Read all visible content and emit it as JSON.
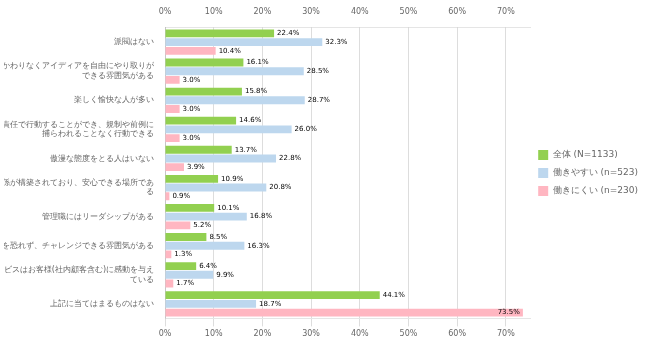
{
  "chart_data": {
    "type": "bar",
    "orientation": "horizontal",
    "categories": [
      "派閥はない",
      "地位や部署にかかわりなくアイディアを自由にやり取りが\nできる雰囲気がある",
      "楽しく愉快な人が多い",
      "独自の裁量と責任で行動することができ、規制や前例に\n捕らわれることなく行動できる",
      "傲漫な態度をとる人はいない",
      "相互に信頼関係が構築されており、安心できる場所であ\nる",
      "管理職にはリーダシップがある",
      "変化を恐れず、チャレンジできる雰囲気がある",
      "製品やサービスはお客様(社内顧客含む)に感動を与え\nている",
      "上記に当てはまるものはない"
    ],
    "series": [
      {
        "name": "全体 (N=1133)",
        "color": "#92d050",
        "values": [
          22.4,
          16.1,
          15.8,
          14.6,
          13.7,
          10.9,
          10.1,
          8.5,
          6.4,
          44.1
        ],
        "value_labels": [
          "22.4%",
          "16.1%",
          "15.8%",
          "14.6%",
          "13.7%",
          "10.9%",
          "10.1%",
          "8.5%",
          "6.4%",
          "44.1%"
        ]
      },
      {
        "name": "働きやすい (n=523)",
        "color": "#bdd7ee",
        "values": [
          32.3,
          28.5,
          28.7,
          26.0,
          22.8,
          20.8,
          16.8,
          16.3,
          9.9,
          18.7
        ],
        "value_labels": [
          "32.3%",
          "28.5%",
          "28.7%",
          "26.0%",
          "22.8%",
          "20.8%",
          "16.8%",
          "16.3%",
          "9.9%",
          "18.7%"
        ]
      },
      {
        "name": "働きにくい (n=230)",
        "color": "#ffb6c1",
        "values": [
          10.4,
          3.0,
          3.0,
          3.0,
          3.9,
          0.9,
          5.2,
          1.3,
          1.7,
          73.5
        ],
        "value_labels": [
          "10.4%",
          "3.0%",
          "3.0%",
          "3.0%",
          "3.9%",
          "0.9%",
          "5.2%",
          "1.3%",
          "1.7%",
          "73.5%"
        ]
      }
    ],
    "xlim": [
      0,
      75
    ],
    "xticks": [
      {
        "value": 0,
        "label": "0%"
      },
      {
        "value": 10,
        "label": "10%"
      },
      {
        "value": 20,
        "label": "20%"
      },
      {
        "value": 30,
        "label": "30%"
      },
      {
        "value": 40,
        "label": "40%"
      },
      {
        "value": 50,
        "label": "50%"
      },
      {
        "value": 60,
        "label": "60%"
      },
      {
        "value": 70,
        "label": "70%"
      }
    ],
    "grid": true,
    "legend": "right",
    "data_labels": true
  }
}
